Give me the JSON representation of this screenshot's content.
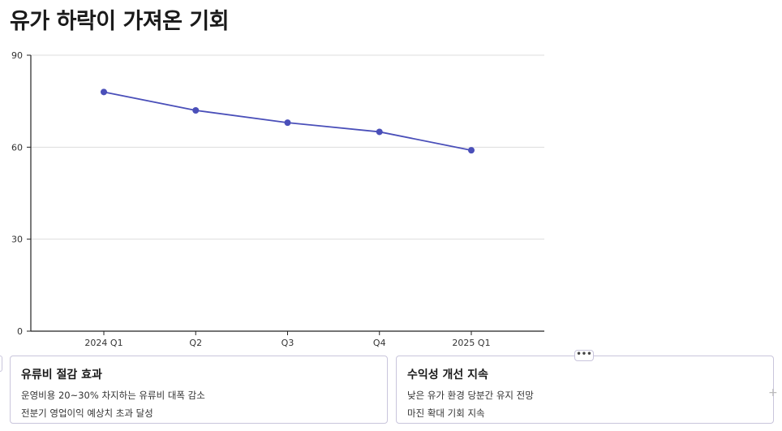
{
  "title": "유가 하락이 가져온 기회",
  "chart_data": {
    "type": "line",
    "categories": [
      "2024 Q1",
      "Q2",
      "Q3",
      "Q4",
      "2025 Q1"
    ],
    "series": [
      {
        "values": [
          78,
          72,
          68,
          65,
          59
        ]
      }
    ],
    "yticks": [
      "0",
      "30",
      "60",
      "90"
    ],
    "ylim": [
      0,
      90
    ],
    "xlabel": "",
    "ylabel": "",
    "grid": true,
    "line_color": "#4a4fb9"
  },
  "cards": [
    {
      "title": "유류비 절감 효과",
      "lines": [
        "운영비용 20~30% 차지하는 유류비 대폭 감소",
        "전분기 영업이익 예상치 초과 달성"
      ]
    },
    {
      "title": "수익성 개선 지속",
      "lines": [
        "낮은 유가 환경 당분간 유지 전망",
        "마진 확대 기회 지속"
      ]
    }
  ],
  "more_button": "•••",
  "add_icon": "+"
}
